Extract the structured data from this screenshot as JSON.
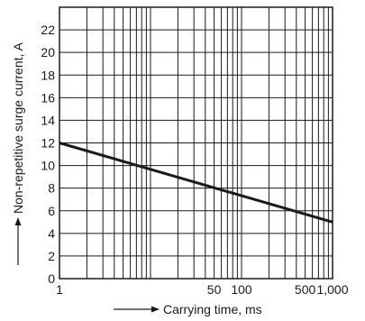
{
  "chart_data": {
    "type": "line",
    "title": "",
    "xlabel": "Carrying time, ms",
    "ylabel": "Non-repetitive surge current, A",
    "x_scale": "log",
    "xlim": [
      1,
      1000
    ],
    "ylim": [
      0,
      24
    ],
    "grid": true,
    "legend": "none",
    "x_ticks": [
      {
        "value": 1,
        "label": "1"
      },
      {
        "value": 50,
        "label": "50"
      },
      {
        "value": 100,
        "label": "100"
      },
      {
        "value": 500,
        "label": "500"
      },
      {
        "value": 1000,
        "label": "1,000"
      }
    ],
    "y_ticks": [
      0,
      2,
      4,
      6,
      8,
      10,
      12,
      14,
      16,
      18,
      20,
      22
    ],
    "series": [
      {
        "x": [
          1,
          1000
        ],
        "y": [
          12,
          5
        ],
        "color": "#1a1a1a"
      }
    ]
  }
}
